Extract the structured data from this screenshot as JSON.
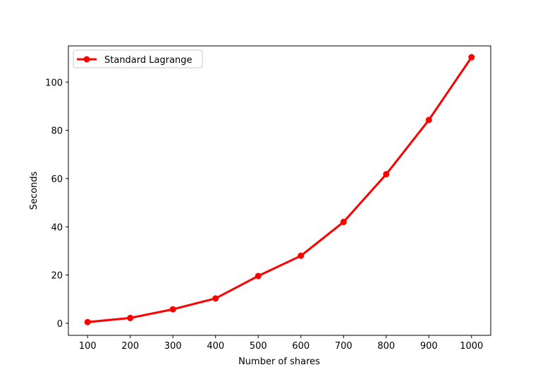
{
  "chart_data": {
    "type": "line",
    "title": "",
    "xlabel": "Number of shares",
    "ylabel": "Seconds",
    "x": [
      100,
      200,
      300,
      400,
      500,
      600,
      700,
      800,
      900,
      1000
    ],
    "xticks": [
      100,
      200,
      300,
      400,
      500,
      600,
      700,
      800,
      900,
      1000
    ],
    "yticks": [
      0,
      20,
      40,
      60,
      80,
      100
    ],
    "xlim": [
      55,
      1045
    ],
    "ylim": [
      -5,
      115
    ],
    "grid": false,
    "legend_position": "upper-left",
    "series": [
      {
        "name": "Standard Lagrange",
        "color": "#ff0000",
        "marker": "circle",
        "values": [
          0.5,
          2.2,
          5.8,
          10.3,
          19.6,
          28,
          42,
          61.8,
          84.3,
          110.3
        ]
      }
    ]
  }
}
